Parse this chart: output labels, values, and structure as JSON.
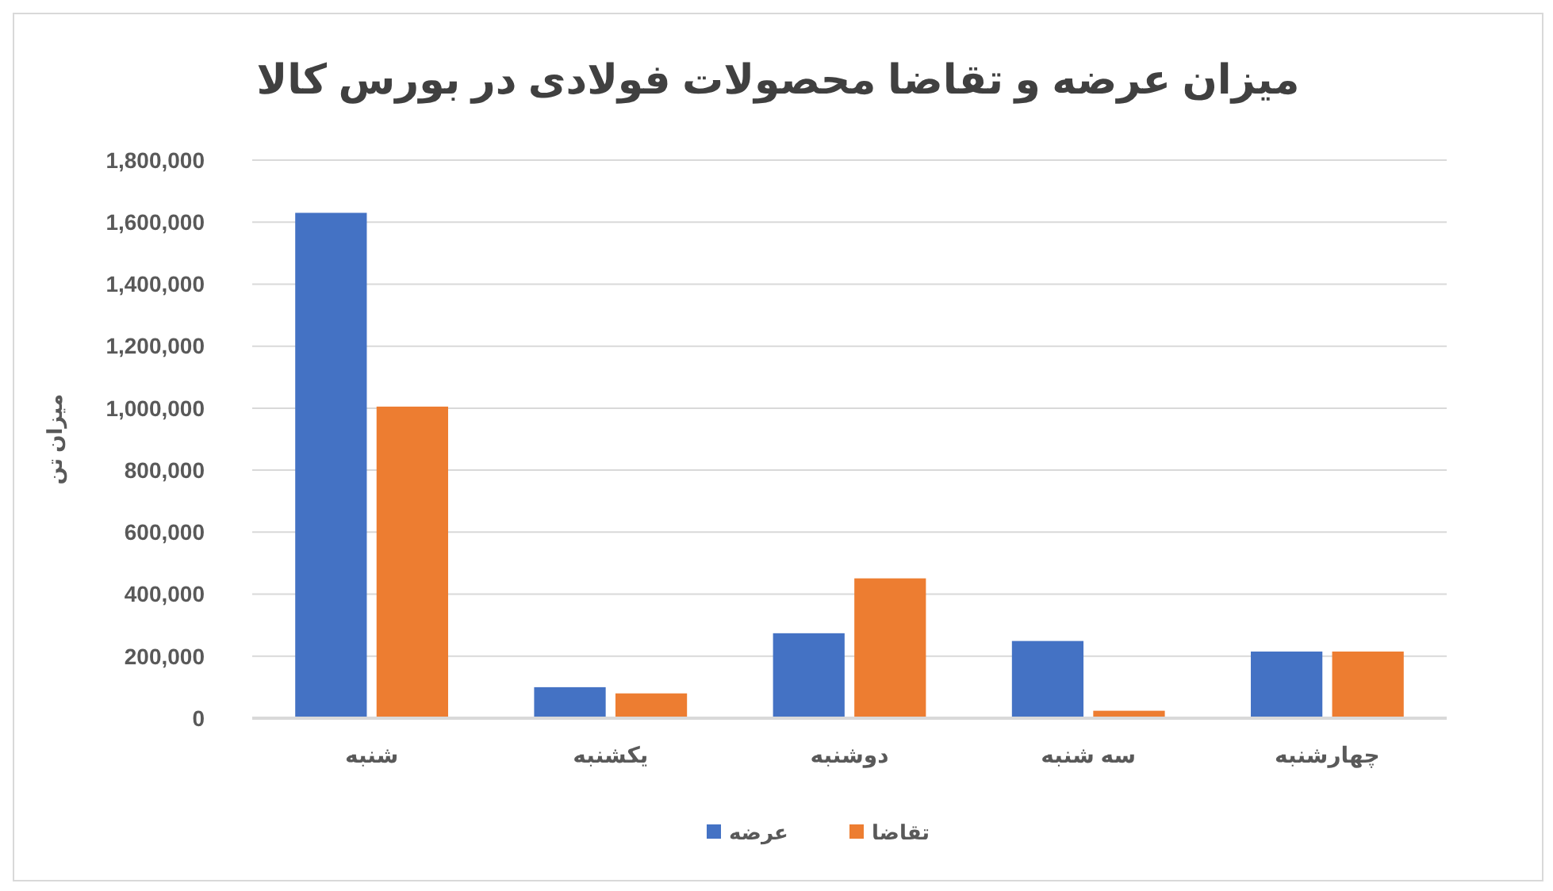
{
  "chart_data": {
    "type": "bar",
    "title": "میزان عرضه و تقاضا محصولات فولادی در بورس کالا",
    "ylabel": "میزان تن",
    "categories": [
      "شنبه",
      "یکشنبه",
      "دوشنبه",
      "سه شنبه",
      "چهارشنبه"
    ],
    "series": [
      {
        "name": "عرضه",
        "color": "#4472c4",
        "values": [
          1630000,
          100000,
          274000,
          249000,
          215000
        ]
      },
      {
        "name": "تقاضا",
        "color": "#ed7d31",
        "values": [
          1005000,
          80000,
          451000,
          24000,
          215000
        ]
      }
    ],
    "ylim": [
      0,
      1800000
    ],
    "yticks": [
      {
        "value": 0,
        "label": "0"
      },
      {
        "value": 200000,
        "label": "200,000"
      },
      {
        "value": 400000,
        "label": "400,000"
      },
      {
        "value": 600000,
        "label": "600,000"
      },
      {
        "value": 800000,
        "label": "800,000"
      },
      {
        "value": 1000000,
        "label": "1,000,000"
      },
      {
        "value": 1200000,
        "label": "1,200,000"
      },
      {
        "value": 1400000,
        "label": "1,400,000"
      },
      {
        "value": 1600000,
        "label": "1,600,000"
      },
      {
        "value": 1800000,
        "label": "1,800,000"
      }
    ],
    "grid": "y",
    "legend": "bottom"
  }
}
